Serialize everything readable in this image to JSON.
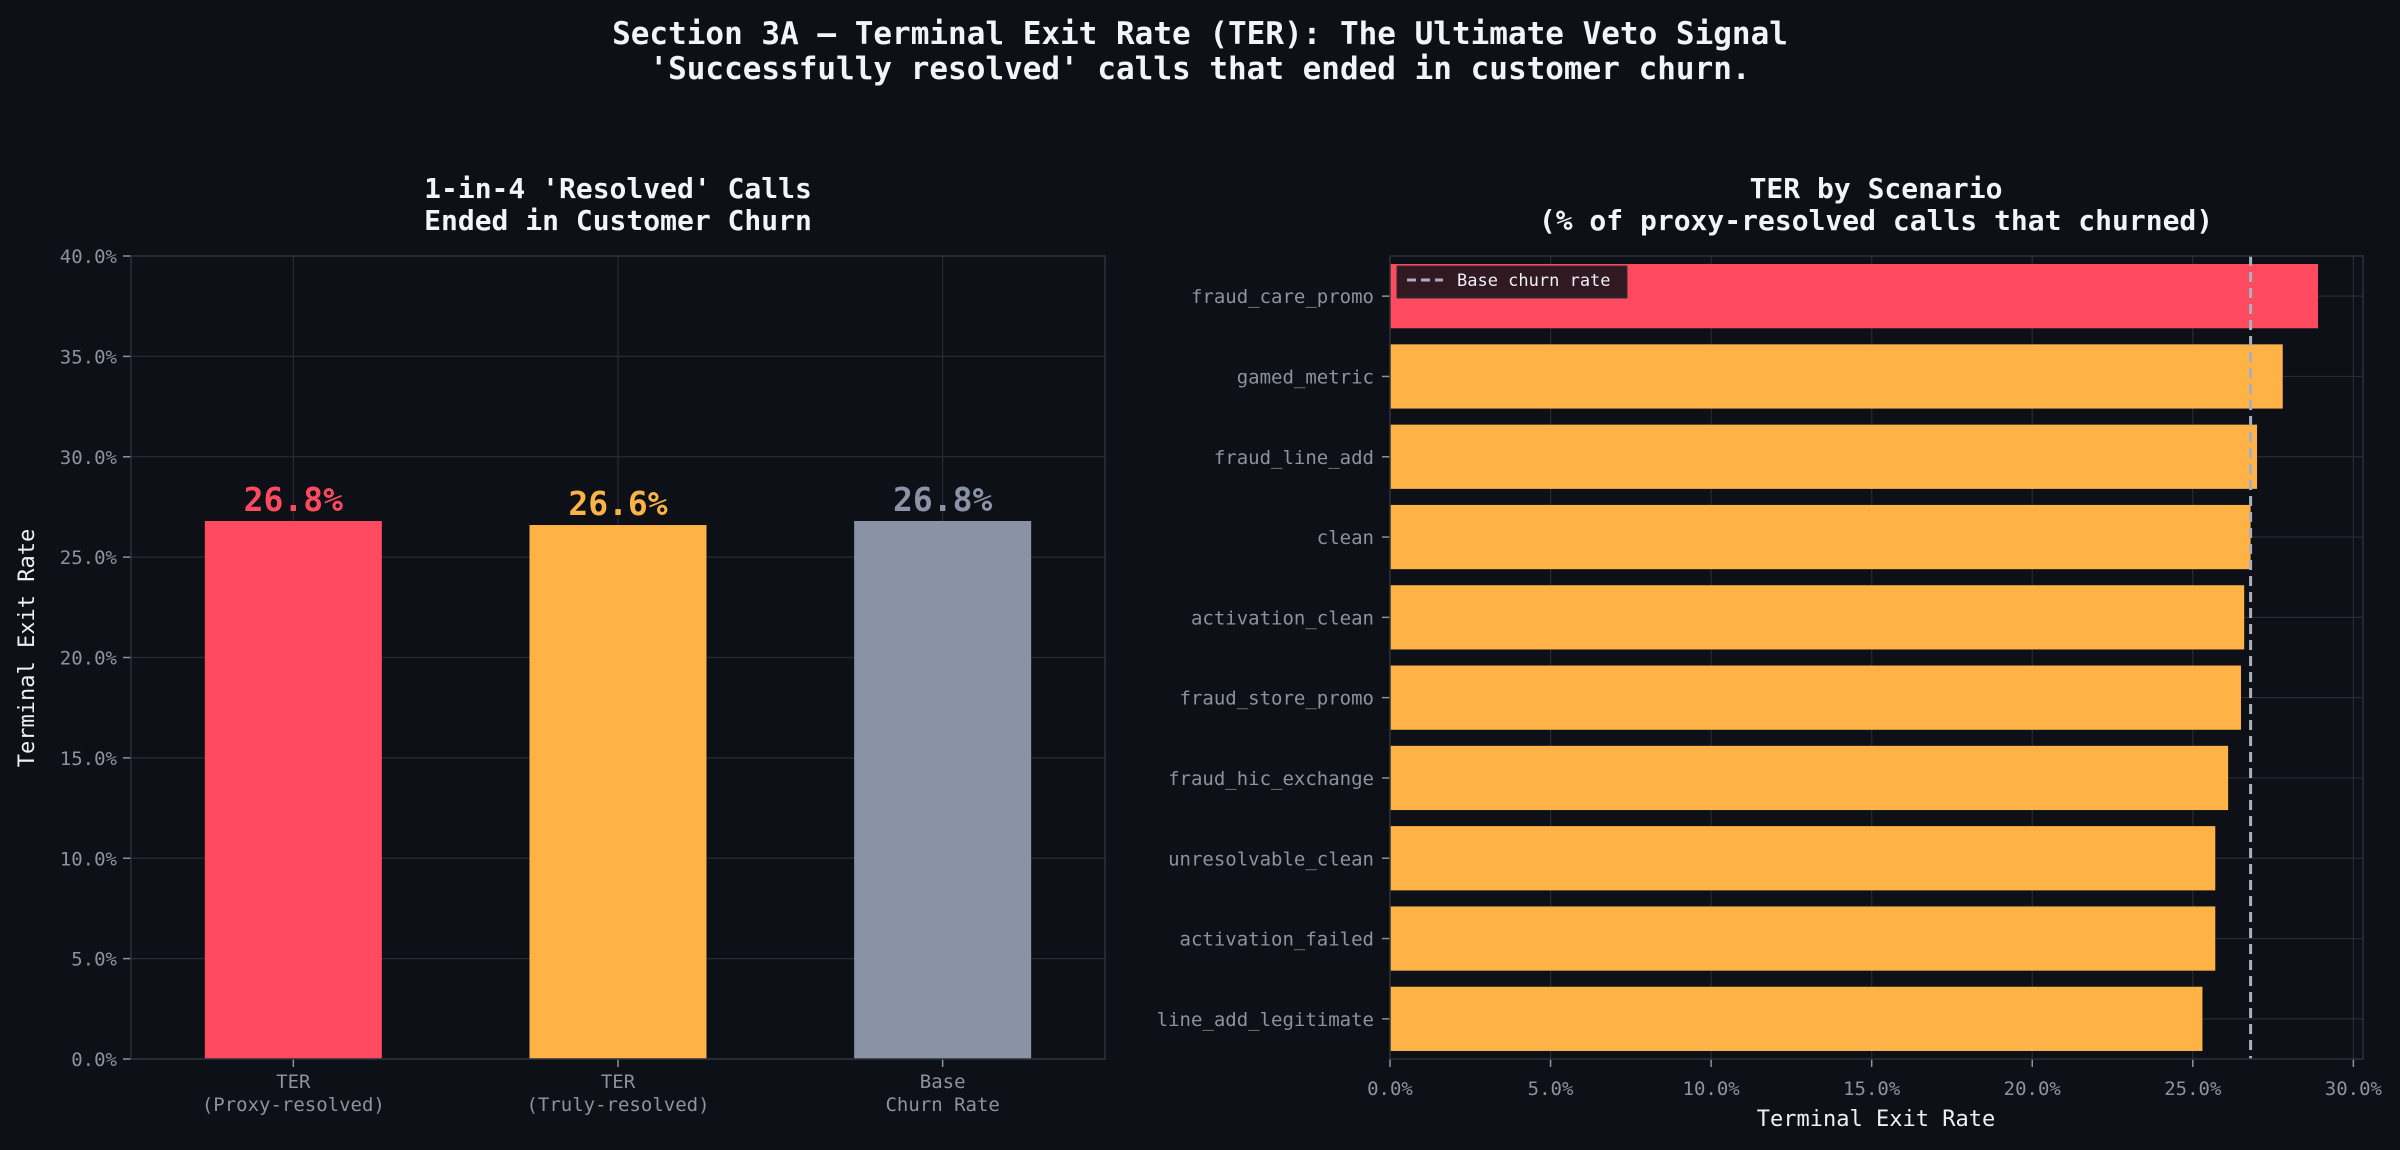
{
  "figure": {
    "title_line1": "Section 3A — Terminal Exit Rate (TER): The Ultimate Veto Signal",
    "title_line2": "'Successfully resolved' calls that ended in customer churn."
  },
  "colors": {
    "background": "#0d1017",
    "red": "#ff4a5f",
    "orange": "#ffb347",
    "gray": "#8a93a6",
    "baseline": "#a9afbb"
  },
  "chart_data": [
    {
      "type": "bar",
      "title_line1": "1-in-4 'Resolved' Calls",
      "title_line2": "Ended in Customer Churn",
      "ylabel": "Terminal Exit Rate",
      "ylim": [
        0,
        40
      ],
      "yticks": [
        "0.0%",
        "5.0%",
        "10.0%",
        "15.0%",
        "20.0%",
        "25.0%",
        "30.0%",
        "35.0%",
        "40.0%"
      ],
      "categories": [
        {
          "line1": "TER",
          "line2": "(Proxy-resolved)"
        },
        {
          "line1": "TER",
          "line2": "(Truly-resolved)"
        },
        {
          "line1": "Base",
          "line2": "Churn Rate"
        }
      ],
      "values": [
        26.8,
        26.6,
        26.8
      ],
      "value_labels": [
        "26.8%",
        "26.6%",
        "26.8%"
      ],
      "bar_colors": [
        "#ff4a5f",
        "#ffb347",
        "#8a93a6"
      ],
      "grid": true
    },
    {
      "type": "bar",
      "orientation": "horizontal",
      "title_line1": "TER by Scenario",
      "title_line2": "(% of proxy-resolved calls that churned)",
      "xlabel": "Terminal Exit Rate",
      "xlim": [
        0,
        30.3
      ],
      "xticks": [
        "0.0%",
        "5.0%",
        "10.0%",
        "15.0%",
        "20.0%",
        "25.0%",
        "30.0%"
      ],
      "categories": [
        "fraud_care_promo",
        "gamed_metric",
        "fraud_line_add",
        "clean",
        "activation_clean",
        "fraud_store_promo",
        "fraud_hic_exchange",
        "unresolvable_clean",
        "activation_failed",
        "line_add_legitimate"
      ],
      "values": [
        28.9,
        27.8,
        27.0,
        26.8,
        26.6,
        26.5,
        26.1,
        25.7,
        25.7,
        25.3
      ],
      "bar_colors": [
        "#ff4a5f",
        "#ffb347",
        "#ffb347",
        "#ffb347",
        "#ffb347",
        "#ffb347",
        "#ffb347",
        "#ffb347",
        "#ffb347",
        "#ffb347"
      ],
      "reference_line": {
        "value": 26.8,
        "label": "Base churn rate"
      },
      "legend": "top-left",
      "grid": true
    }
  ]
}
